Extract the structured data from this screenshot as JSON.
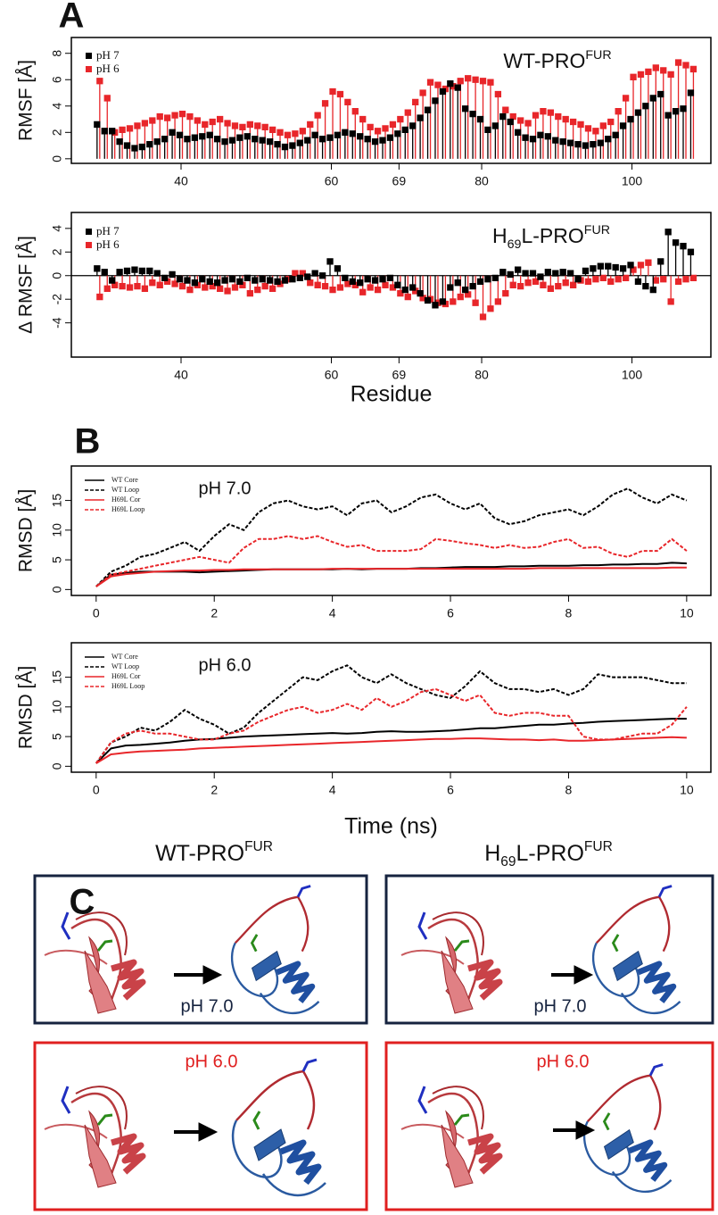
{
  "panel_labels": [
    "A",
    "B",
    "C"
  ],
  "chart_data": [
    {
      "type": "lollipop",
      "title": [
        {
          "text": "WT-PRO"
        },
        {
          "text": "FUR",
          "style": "sup"
        }
      ],
      "y_label": "RMSF [Å]",
      "x": [
        29,
        30,
        31,
        32,
        33,
        34,
        35,
        36,
        37,
        38,
        39,
        40,
        41,
        42,
        43,
        44,
        45,
        46,
        47,
        48,
        49,
        50,
        51,
        52,
        53,
        54,
        55,
        56,
        57,
        58,
        59,
        60,
        61,
        62,
        63,
        64,
        65,
        66,
        67,
        68,
        69,
        70,
        71,
        72,
        73,
        74,
        75,
        76,
        77,
        78,
        79,
        80,
        81,
        82,
        83,
        84,
        85,
        86,
        87,
        88,
        89,
        90,
        91,
        92,
        93,
        94,
        95,
        96,
        97,
        98,
        99,
        100,
        101,
        102,
        103,
        104,
        105,
        106,
        107,
        108
      ],
      "series": [
        {
          "name": "pH 7",
          "color": "#000000",
          "values": [
            2.6,
            2.1,
            2.1,
            1.3,
            1.0,
            0.8,
            0.9,
            1.1,
            1.3,
            1.5,
            2.0,
            1.8,
            1.5,
            1.6,
            1.7,
            1.8,
            1.5,
            1.3,
            1.4,
            1.6,
            1.7,
            1.5,
            1.4,
            1.3,
            1.1,
            0.9,
            1.0,
            1.2,
            1.4,
            1.8,
            1.5,
            1.6,
            1.8,
            2.0,
            1.9,
            1.7,
            1.5,
            1.3,
            1.4,
            1.6,
            1.9,
            2.2,
            2.5,
            3.1,
            3.7,
            4.4,
            5.1,
            5.7,
            5.4,
            3.8,
            3.4,
            3.0,
            2.2,
            2.5,
            3.2,
            2.8,
            2.0,
            1.6,
            1.5,
            1.8,
            1.7,
            1.4,
            1.3,
            1.2,
            1.1,
            1.0,
            1.1,
            1.2,
            1.5,
            1.8,
            2.5,
            3.0,
            3.5,
            4.0,
            4.6,
            4.9,
            3.3,
            3.6,
            3.8,
            5.0
          ]
        },
        {
          "name": "pH 6",
          "color": "#e8262a",
          "values": [
            5.9,
            4.6,
            2.0,
            2.2,
            2.3,
            2.5,
            2.7,
            2.9,
            3.2,
            3.1,
            3.3,
            3.4,
            3.2,
            2.9,
            2.6,
            2.8,
            3.0,
            2.7,
            2.5,
            2.4,
            2.6,
            2.5,
            2.4,
            2.2,
            2.0,
            1.8,
            1.9,
            2.1,
            2.6,
            3.3,
            4.2,
            5.1,
            4.9,
            4.3,
            3.6,
            3.0,
            2.4,
            2.1,
            2.3,
            2.6,
            3.0,
            3.5,
            4.3,
            5.0,
            5.8,
            5.6,
            5.3,
            5.5,
            5.9,
            6.1,
            6.0,
            5.9,
            5.8,
            4.9,
            3.7,
            3.2,
            2.9,
            2.7,
            3.3,
            3.6,
            3.5,
            3.2,
            3.0,
            2.8,
            2.6,
            2.3,
            2.1,
            2.5,
            2.8,
            3.6,
            4.6,
            6.2,
            6.4,
            6.6,
            6.9,
            6.7,
            6.4,
            7.3,
            7.1,
            6.8
          ]
        }
      ],
      "xlim": [
        25.4,
        110.5
      ],
      "xticks": [
        40,
        60,
        69,
        80,
        100
      ],
      "ylim": [
        -0.35,
        9.2
      ],
      "yticks": [
        0,
        2,
        4,
        6,
        8
      ],
      "legend": "top-left",
      "zero_line": false
    },
    {
      "type": "lollipop",
      "title": [
        {
          "text": "H"
        },
        {
          "text": "69",
          "style": "sub"
        },
        {
          "text": "L-PRO"
        },
        {
          "text": "FUR",
          "style": "sup"
        }
      ],
      "y_label": "Δ RMSF [Å]",
      "x_label": "Residue",
      "x": [
        29,
        30,
        31,
        32,
        33,
        34,
        35,
        36,
        37,
        38,
        39,
        40,
        41,
        42,
        43,
        44,
        45,
        46,
        47,
        48,
        49,
        50,
        51,
        52,
        53,
        54,
        55,
        56,
        57,
        58,
        59,
        60,
        61,
        62,
        63,
        64,
        65,
        66,
        67,
        68,
        69,
        70,
        71,
        72,
        73,
        74,
        75,
        76,
        77,
        78,
        79,
        80,
        81,
        82,
        83,
        84,
        85,
        86,
        87,
        88,
        89,
        90,
        91,
        92,
        93,
        94,
        95,
        96,
        97,
        98,
        99,
        100,
        101,
        102,
        103,
        104,
        105,
        106,
        107,
        108
      ],
      "series": [
        {
          "name": "pH 7",
          "color": "#000000",
          "values": [
            0.6,
            0.3,
            -0.4,
            0.3,
            0.4,
            0.5,
            0.4,
            0.4,
            0.2,
            -0.2,
            0.1,
            -0.3,
            -0.4,
            -0.6,
            -0.3,
            -0.5,
            -0.6,
            -0.4,
            -0.3,
            -0.5,
            -0.2,
            -0.4,
            -0.3,
            -0.4,
            -0.5,
            -0.4,
            -0.3,
            -0.2,
            -0.1,
            0.2,
            0.0,
            1.2,
            0.6,
            -0.2,
            -0.5,
            -0.6,
            -0.3,
            -0.4,
            -0.3,
            -0.2,
            -0.8,
            -1.2,
            -1.0,
            -1.5,
            -2.1,
            -2.5,
            -2.2,
            -1.0,
            -0.6,
            -1.2,
            -0.9,
            -0.5,
            -0.3,
            -0.2,
            0.3,
            0.1,
            0.5,
            0.2,
            0.2,
            -0.1,
            0.3,
            0.2,
            0.3,
            0.2,
            -0.3,
            0.4,
            0.6,
            0.8,
            0.8,
            0.7,
            0.6,
            0.9,
            -0.5,
            -0.9,
            -1.2,
            1.2,
            3.7,
            2.8,
            2.5,
            2.0
          ]
        },
        {
          "name": "pH 6",
          "color": "#e8262a",
          "values": [
            -1.8,
            -1.1,
            -0.8,
            -0.9,
            -1.0,
            -0.9,
            -1.1,
            -0.6,
            -0.8,
            -0.5,
            -0.7,
            -0.9,
            -1.2,
            -0.8,
            -1.0,
            -0.9,
            -1.1,
            -1.3,
            -1.0,
            -0.8,
            -1.5,
            -1.2,
            -0.9,
            -1.1,
            -0.7,
            -0.3,
            0.2,
            0.2,
            -0.6,
            -0.8,
            -0.9,
            -1.2,
            -1.0,
            -0.7,
            -0.8,
            -1.4,
            -1.0,
            -1.2,
            -0.8,
            -1.0,
            -1.5,
            -1.8,
            -1.3,
            -1.9,
            -2.0,
            -2.3,
            -2.4,
            -2.2,
            -1.8,
            -1.6,
            -2.3,
            -3.5,
            -2.8,
            -2.2,
            -1.5,
            -0.8,
            -0.9,
            -0.6,
            -0.5,
            -0.8,
            -1.1,
            -0.9,
            -0.6,
            -0.8,
            -0.4,
            -0.5,
            -0.3,
            -0.2,
            -0.5,
            -0.3,
            -0.2,
            0.5,
            0.9,
            1.1,
            -0.4,
            -0.3,
            -2.2,
            -0.5,
            -0.3,
            -0.2
          ]
        }
      ],
      "xlim": [
        25.4,
        110.5
      ],
      "xticks": [
        40,
        60,
        69,
        80,
        100
      ],
      "ylim": [
        -6.9,
        5.35
      ],
      "yticks": [
        -4,
        -2,
        0,
        2,
        4
      ],
      "legend": "top-left",
      "zero_line": true
    },
    {
      "type": "line",
      "y_label": "RMSD [Å]",
      "annotation": "pH 7.0",
      "x": [
        0,
        0.25,
        0.5,
        0.75,
        1,
        1.25,
        1.5,
        1.75,
        2,
        2.25,
        2.5,
        2.75,
        3,
        3.25,
        3.5,
        3.75,
        4,
        4.25,
        4.5,
        4.75,
        5,
        5.25,
        5.5,
        5.75,
        6,
        6.25,
        6.5,
        6.75,
        7,
        7.25,
        7.5,
        7.75,
        8,
        8.25,
        8.5,
        8.75,
        9,
        9.25,
        9.5,
        9.75,
        10
      ],
      "series": [
        {
          "name": "WT Core",
          "color": "#000000",
          "dash": false,
          "values": [
            0.5,
            2.5,
            2.8,
            3,
            3,
            3,
            3,
            2.9,
            3,
            3.1,
            3.2,
            3.3,
            3.4,
            3.4,
            3.4,
            3.4,
            3.4,
            3.5,
            3.4,
            3.5,
            3.5,
            3.5,
            3.6,
            3.6,
            3.7,
            3.8,
            3.8,
            3.8,
            3.9,
            3.9,
            4,
            4,
            4,
            4.1,
            4.1,
            4.2,
            4.2,
            4.3,
            4.3,
            4.5,
            4.4
          ]
        },
        {
          "name": "WT Loop",
          "color": "#000000",
          "dash": true,
          "values": [
            0.5,
            3,
            4,
            5.5,
            6,
            7,
            8,
            6.5,
            9,
            11,
            10,
            13,
            14.5,
            15,
            14,
            13.5,
            14,
            12.5,
            14.5,
            15,
            13,
            14,
            15.5,
            16,
            14.5,
            13.5,
            14.5,
            12,
            11,
            11.5,
            12.5,
            13,
            13.5,
            12.5,
            14,
            16,
            17,
            15.5,
            14.5,
            16,
            15
          ]
        },
        {
          "name": "H69L Cor",
          "color": "#e8262a",
          "dash": false,
          "values": [
            0.5,
            2.2,
            2.6,
            2.8,
            3,
            3.1,
            3.2,
            3.2,
            3.3,
            3.3,
            3.4,
            3.4,
            3.4,
            3.4,
            3.4,
            3.4,
            3.5,
            3.5,
            3.5,
            3.5,
            3.5,
            3.5,
            3.5,
            3.5,
            3.5,
            3.5,
            3.5,
            3.5,
            3.5,
            3.5,
            3.6,
            3.6,
            3.6,
            3.6,
            3.6,
            3.6,
            3.6,
            3.6,
            3.6,
            3.7,
            3.7
          ]
        },
        {
          "name": "H69L Loop",
          "color": "#e8262a",
          "dash": true,
          "values": [
            0.5,
            2.5,
            3,
            3.5,
            4,
            4.5,
            5,
            5.5,
            5,
            4.5,
            7,
            8.5,
            8.5,
            9,
            8.5,
            9,
            8,
            7.2,
            7.5,
            6.5,
            6.5,
            6.5,
            6.8,
            8.5,
            8.2,
            7.8,
            7.5,
            7,
            7.5,
            7,
            7.2,
            8,
            8.5,
            7,
            7.2,
            6,
            5.5,
            6.5,
            6.5,
            8.5,
            6.5
          ]
        }
      ],
      "xlim": [
        -0.42,
        10.41
      ],
      "xticks": [
        0,
        2,
        4,
        6,
        8,
        10
      ],
      "ylim": [
        -1,
        20.8
      ],
      "yticks": [
        0,
        5,
        10,
        15
      ],
      "legend": "top-left"
    },
    {
      "type": "line",
      "y_label": "RMSD [Å]",
      "x_label": "Time (ns)",
      "annotation": "pH 6.0",
      "x": [
        0,
        0.25,
        0.5,
        0.75,
        1,
        1.25,
        1.5,
        1.75,
        2,
        2.25,
        2.5,
        2.75,
        3,
        3.25,
        3.5,
        3.75,
        4,
        4.25,
        4.5,
        4.75,
        5,
        5.25,
        5.5,
        5.75,
        6,
        6.25,
        6.5,
        6.75,
        7,
        7.25,
        7.5,
        7.75,
        8,
        8.25,
        8.5,
        8.75,
        9,
        9.25,
        9.5,
        9.75,
        10
      ],
      "series": [
        {
          "name": "WT Core",
          "color": "#000000",
          "dash": false,
          "values": [
            0.5,
            3,
            3.5,
            3.6,
            3.8,
            4,
            4.3,
            4.5,
            4.6,
            4.8,
            5,
            5.1,
            5.2,
            5.3,
            5.4,
            5.5,
            5.6,
            5.5,
            5.6,
            5.8,
            5.9,
            5.8,
            5.8,
            5.9,
            6,
            6.2,
            6.4,
            6.4,
            6.6,
            6.8,
            7,
            7,
            7.2,
            7.3,
            7.5,
            7.6,
            7.7,
            7.8,
            7.9,
            8,
            8
          ]
        },
        {
          "name": "WT Loop",
          "color": "#000000",
          "dash": true,
          "values": [
            0.5,
            4,
            5,
            6.5,
            6,
            7.5,
            9.5,
            8,
            7,
            5.5,
            6.5,
            9,
            11,
            13,
            15,
            14.5,
            16,
            17,
            15,
            14,
            15.5,
            14,
            13,
            12,
            11.5,
            13.5,
            16,
            14,
            13,
            13,
            12.5,
            13,
            12,
            13,
            15.5,
            15,
            15,
            15,
            14.5,
            14,
            14
          ]
        },
        {
          "name": "H69L Cor",
          "color": "#e8262a",
          "dash": false,
          "values": [
            0.5,
            2,
            2.3,
            2.5,
            2.6,
            2.7,
            2.8,
            3,
            3.1,
            3.2,
            3.3,
            3.4,
            3.5,
            3.6,
            3.7,
            3.8,
            3.9,
            4,
            4.1,
            4.2,
            4.3,
            4.4,
            4.5,
            4.6,
            4.6,
            4.7,
            4.7,
            4.6,
            4.5,
            4.5,
            4.4,
            4.5,
            4.3,
            4.3,
            4.4,
            4.5,
            4.6,
            4.7,
            4.8,
            4.9,
            4.8
          ]
        },
        {
          "name": "H69L Loop",
          "color": "#e8262a",
          "dash": true,
          "values": [
            0.5,
            4,
            5.5,
            6,
            5.5,
            5.5,
            5,
            4.5,
            4.5,
            5.5,
            6,
            7.5,
            8.5,
            9.5,
            10,
            9,
            9.5,
            10.5,
            9.5,
            11.5,
            10,
            11,
            12.5,
            13,
            12,
            11,
            12,
            9,
            8.5,
            9,
            9,
            8.5,
            8.5,
            5,
            4.5,
            4.5,
            5,
            5.5,
            5.5,
            7,
            10
          ]
        }
      ],
      "xlim": [
        -0.42,
        10.41
      ],
      "xticks": [
        0,
        2,
        4,
        6,
        8,
        10
      ],
      "ylim": [
        -1,
        20.8
      ],
      "yticks": [
        0,
        5,
        10,
        15
      ],
      "legend": "top-left"
    }
  ],
  "panel_c": {
    "columns": [
      {
        "title": [
          {
            "text": "WT-PRO"
          },
          {
            "text": "FUR",
            "style": "sup"
          }
        ],
        "labels": [
          "pH 7.0",
          "pH 6.0"
        ]
      },
      {
        "title": [
          {
            "text": "H"
          },
          {
            "text": "69",
            "style": "sub"
          },
          {
            "text": "L-PRO"
          },
          {
            "text": "FUR",
            "style": "sup"
          }
        ],
        "labels": [
          "pH 7.0",
          "pH 6.0"
        ]
      }
    ]
  }
}
